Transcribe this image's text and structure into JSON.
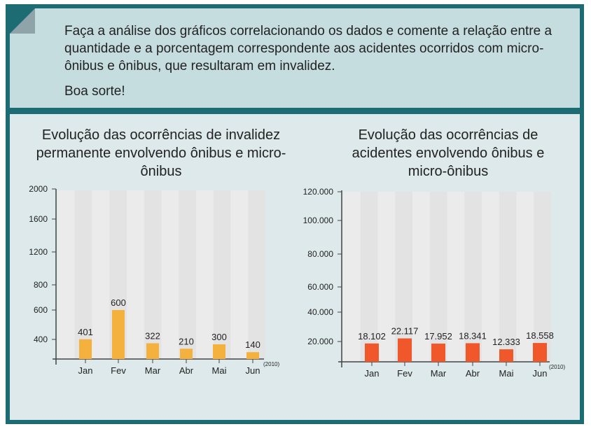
{
  "instructions": "Faça a análise dos gráficos correlacionando os dados e comente a relação entre a quantidade e a porcentagem correspondente aos acidentes ocorridos com micro-ônibus e ônibus, que resultaram em invalidez.",
  "closing": "Boa sorte!",
  "chart_data": [
    {
      "type": "bar",
      "title": "Evolução das ocorrências de invalidez permanente envolvendo ônibus e micro-ônibus",
      "categories": [
        "Jan",
        "Fev",
        "Mar",
        "Abr",
        "Mai",
        "Jun"
      ],
      "values": [
        401,
        600,
        322,
        210,
        300,
        140
      ],
      "value_labels": [
        "401",
        "600",
        "322",
        "210",
        "300",
        "140"
      ],
      "yticks": [
        {
          "v": 2000,
          "label": "2000"
        },
        {
          "v": 1600,
          "label": "1600"
        },
        {
          "v": 1200,
          "label": "1200"
        },
        {
          "v": 800,
          "label": "800"
        },
        {
          "v": 600,
          "label": "600"
        },
        {
          "v": 400,
          "label": "400"
        }
      ],
      "ylim": [
        0,
        2000
      ],
      "year_note": "(2010)",
      "color": "#f5b13d"
    },
    {
      "type": "bar",
      "title": "Evolução das ocorrências de acidentes envolvendo ônibus e micro-ônibus",
      "categories": [
        "Jan",
        "Fev",
        "Mar",
        "Abr",
        "Mai",
        "Jun"
      ],
      "values": [
        18102,
        22117,
        17952,
        18341,
        12333,
        18558
      ],
      "value_labels": [
        "18.102",
        "22.117",
        "17.952",
        "18.341",
        "12.333",
        "18.558"
      ],
      "yticks": [
        {
          "v": 120000,
          "label": "120.000"
        },
        {
          "v": 100000,
          "label": "100.000"
        },
        {
          "v": 80000,
          "label": "80.000"
        },
        {
          "v": 60000,
          "label": "60.000"
        },
        {
          "v": 40000,
          "label": "40.000"
        },
        {
          "v": 20000,
          "label": "20.000"
        }
      ],
      "ylim": [
        0,
        120000
      ],
      "year_note": "(2010)",
      "color": "#f0572a"
    }
  ]
}
